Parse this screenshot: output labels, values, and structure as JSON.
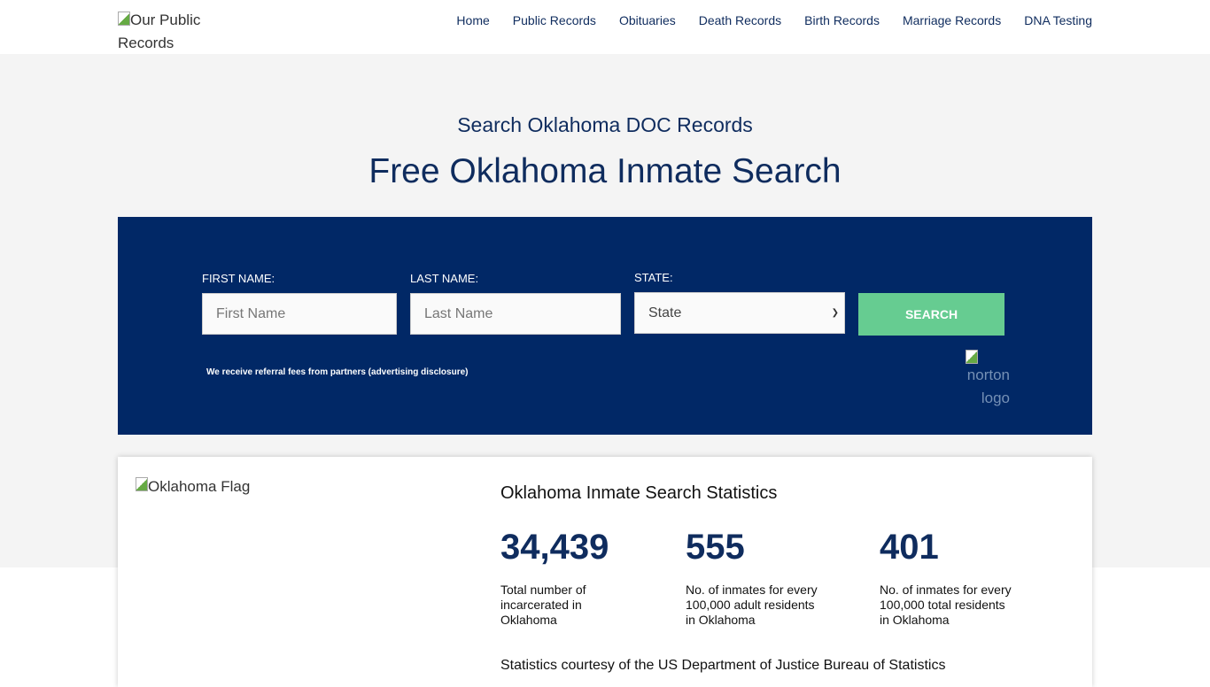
{
  "header": {
    "logo_alt": "Our Public Records",
    "nav": [
      "Home",
      "Public Records",
      "Obituaries",
      "Death Records",
      "Birth Records",
      "Marriage Records",
      "DNA Testing"
    ]
  },
  "hero": {
    "subtitle": "Search Oklahoma DOC Records",
    "title": "Free Oklahoma Inmate Search"
  },
  "form": {
    "first_label": "FIRST NAME:",
    "first_placeholder": "First Name",
    "last_label": "LAST NAME:",
    "last_placeholder": "Last Name",
    "state_label": "STATE:",
    "state_value": "State",
    "search_label": "SEARCH",
    "disclosure": "We receive referral fees from partners (advertising disclosure)",
    "norton_alt": "norton logo",
    "accent": "#66cc91",
    "panel_color": "#012866"
  },
  "stats": {
    "flag_alt": "Oklahoma Flag",
    "title": "Oklahoma Inmate Search Statistics",
    "items": [
      {
        "value": "34,439",
        "desc": "Total number of incarcerated in Oklahoma"
      },
      {
        "value": "555",
        "desc": "No. of inmates for every 100,000 adult residents in Oklahoma"
      },
      {
        "value": "401",
        "desc": "No. of inmates for every 100,000 total residents in Oklahoma"
      }
    ],
    "courtesy": "Statistics courtesy of the US Department of Justice Bureau of Statistics"
  }
}
